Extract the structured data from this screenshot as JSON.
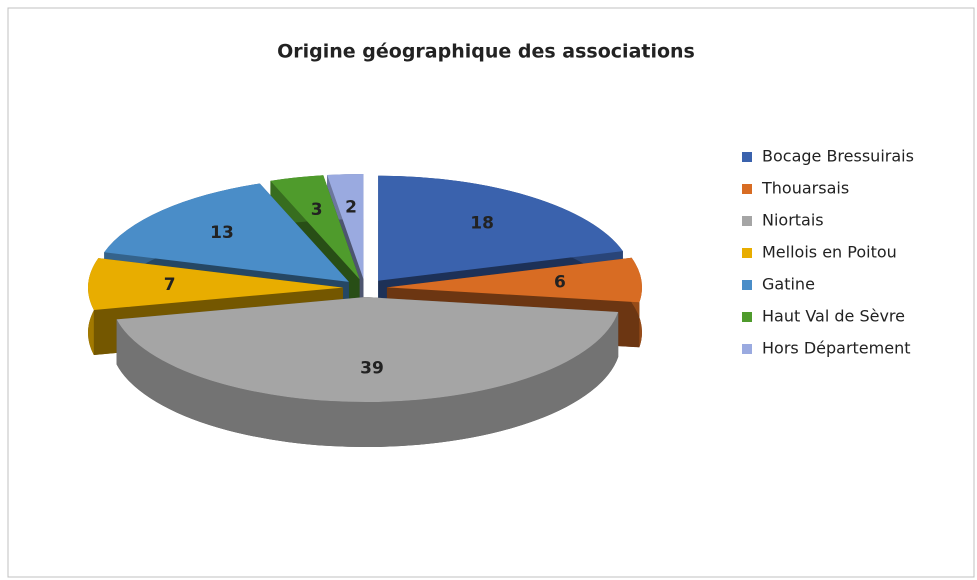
{
  "chart_data": {
    "type": "pie3d",
    "title": "Origine géographique des associations",
    "categories": [
      "Bocage Bressuirais",
      "Thouarsais",
      "Niortais",
      "Mellois en Poitou",
      "Gatine",
      "Haut Val de Sèvre",
      "Hors Département"
    ],
    "values": [
      18,
      6,
      39,
      7,
      13,
      3,
      2
    ],
    "colors": [
      "#3a62ad",
      "#d86c23",
      "#a5a5a5",
      "#e8ad00",
      "#4a8dc8",
      "#4f9b2c",
      "#9aaae0"
    ],
    "legend": "right"
  }
}
